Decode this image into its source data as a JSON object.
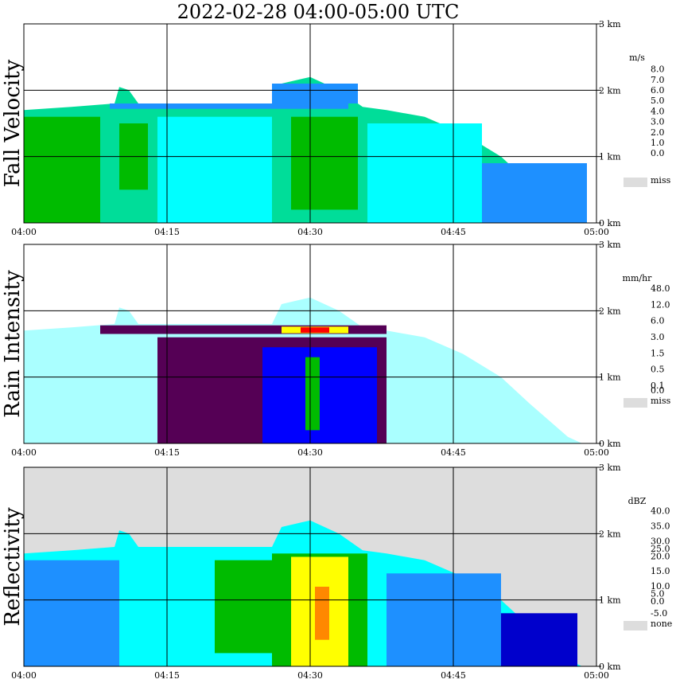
{
  "title": "2022-02-28   04:00-05:00 UTC",
  "colors": {
    "miss": "#dddddd",
    "grid": "#000000"
  },
  "panels": [
    {
      "key": "fall-velocity",
      "ylabel": "Fall Velocity",
      "unit": "m/s",
      "background": "#ffffff",
      "legend": [
        {
          "label": "8.0",
          "color": "#ff00ff"
        },
        {
          "label": "7.0",
          "color": "#ff0000"
        },
        {
          "label": "6.0",
          "color": "#ff8800"
        },
        {
          "label": "5.0",
          "color": "#ffdd00"
        },
        {
          "label": "4.0",
          "color": "#99ee00"
        },
        {
          "label": "3.0",
          "color": "#00bb00"
        },
        {
          "label": "2.0",
          "color": "#00dd99"
        },
        {
          "label": "1.0",
          "color": "#00ffff"
        },
        {
          "label": "0.0",
          "color": "#1e90ff"
        },
        {
          "label": "",
          "color": "#0000ff"
        }
      ],
      "miss_label": "miss"
    },
    {
      "key": "rain-intensity",
      "ylabel": "Rain Intensity",
      "unit": "mm/hr",
      "background": "#ffffff",
      "legend": [
        {
          "label": "48.0",
          "color": "#000000"
        },
        {
          "label": "",
          "color": "#550055"
        },
        {
          "label": "12.0",
          "color": "#aa00aa"
        },
        {
          "label": "",
          "color": "#ff00aa"
        },
        {
          "label": "6.0",
          "color": "#ff0000"
        },
        {
          "label": "",
          "color": "#ff8800"
        },
        {
          "label": "3.0",
          "color": "#ffff00"
        },
        {
          "label": "",
          "color": "#88ff33"
        },
        {
          "label": "1.5",
          "color": "#00bb00"
        },
        {
          "label": "",
          "color": "#1e90ff"
        },
        {
          "label": "0.5",
          "color": "#0000ff"
        },
        {
          "label": "",
          "color": "#00ffff"
        },
        {
          "label": "0.1",
          "color": "#aaffff"
        }
      ],
      "zero_label": "0.0",
      "miss_label": "miss"
    },
    {
      "key": "reflectivity",
      "ylabel": "Reflectivity",
      "unit": "dBZ",
      "background": "#dddddd",
      "legend": [
        {
          "label": "40.0",
          "color": "#cc66cc"
        },
        {
          "label": "",
          "color": "#aa00aa"
        },
        {
          "label": "35.0",
          "color": "#cc00cc"
        },
        {
          "label": "",
          "color": "#ff0066"
        },
        {
          "label": "30.0",
          "color": "#ff0000"
        },
        {
          "label": "25.0",
          "color": "#ff8800"
        },
        {
          "label": "20.0",
          "color": "#ffff00"
        },
        {
          "label": "",
          "color": "#88ff00"
        },
        {
          "label": "15.0",
          "color": "#00bb00"
        },
        {
          "label": "",
          "color": "#00ffcc"
        },
        {
          "label": "10.0",
          "color": "#00ffff"
        },
        {
          "label": "5.0",
          "color": "#1e90ff"
        },
        {
          "label": "0.0",
          "color": "#0000cc"
        },
        {
          "label": "",
          "color": "#000088"
        }
      ],
      "zero_label": "-5.0",
      "miss_label": "none"
    }
  ],
  "chart_data": {
    "type": "heatmap",
    "title": "2022-02-28   04:00-05:00 UTC",
    "x_ticks": [
      "04:00",
      "04:15",
      "04:30",
      "04:45",
      "05:00"
    ],
    "x_tick_minutes": [
      0,
      15,
      30,
      45,
      60
    ],
    "y_ticks": [
      "0 km",
      "1 km",
      "2 km",
      "3 km"
    ],
    "y_tick_km": [
      0,
      1,
      2,
      3
    ],
    "ylim_km": [
      0,
      3.0
    ],
    "xlim_minutes": [
      0,
      60
    ],
    "grid": true,
    "echo_top_km": [
      {
        "t": 0,
        "h": 1.7
      },
      {
        "t": 5,
        "h": 1.75
      },
      {
        "t": 9.5,
        "h": 1.8
      },
      {
        "t": 10,
        "h": 2.05
      },
      {
        "t": 11,
        "h": 2.0
      },
      {
        "t": 12,
        "h": 1.8
      },
      {
        "t": 26,
        "h": 1.8
      },
      {
        "t": 27,
        "h": 2.1
      },
      {
        "t": 30,
        "h": 2.2
      },
      {
        "t": 33,
        "h": 2.0
      },
      {
        "t": 35.5,
        "h": 1.75
      },
      {
        "t": 38,
        "h": 1.7
      },
      {
        "t": 42,
        "h": 1.6
      },
      {
        "t": 46,
        "h": 1.35
      },
      {
        "t": 50,
        "h": 1.0
      },
      {
        "t": 53,
        "h": 0.6
      },
      {
        "t": 57,
        "h": 0.1
      },
      {
        "t": 58.5,
        "h": 0.0
      }
    ],
    "bright_band_km": 1.7,
    "regions": [
      {
        "panel": "fall-velocity",
        "base": "2.0",
        "patches": [
          {
            "t0": 0,
            "t1": 8,
            "h0": 0.0,
            "h1": 1.6,
            "value": "3.0"
          },
          {
            "t0": 10,
            "t1": 13,
            "h0": 0.5,
            "h1": 1.5,
            "value": "3.0"
          },
          {
            "t0": 28,
            "t1": 35,
            "h0": 0.2,
            "h1": 1.6,
            "value": "3.0"
          },
          {
            "t0": 14,
            "t1": 26,
            "h0": 0.0,
            "h1": 1.6,
            "value": "1.0"
          },
          {
            "t0": 36,
            "t1": 48,
            "h0": 0.0,
            "h1": 1.5,
            "value": "1.0"
          },
          {
            "t0": 9,
            "t1": 34,
            "h0": 1.72,
            "h1": 1.8,
            "value": "0.0"
          },
          {
            "t0": 26,
            "t1": 35,
            "h0": 1.8,
            "h1": 2.1,
            "value": "0.0"
          },
          {
            "t0": 48,
            "t1": 59,
            "h0": 0.0,
            "h1": 0.9,
            "value": "0.0"
          }
        ]
      },
      {
        "panel": "rain-intensity",
        "base": "0.1",
        "patches": [
          {
            "t0": 14,
            "t1": 38,
            "h0": 0.0,
            "h1": 1.6,
            "value": ""
          },
          {
            "t0": 25,
            "t1": 37,
            "h0": 0.0,
            "h1": 1.45,
            "value": "0.5"
          },
          {
            "t0": 29.5,
            "t1": 31,
            "h0": 0.2,
            "h1": 1.3,
            "value": "1.5"
          },
          {
            "t0": 8,
            "t1": 38,
            "h0": 1.65,
            "h1": 1.78,
            "value": ""
          },
          {
            "t0": 27,
            "t1": 34,
            "h0": 1.66,
            "h1": 1.76,
            "value": "3.0"
          },
          {
            "t0": 29,
            "t1": 32,
            "h0": 1.67,
            "h1": 1.75,
            "value": "6.0"
          }
        ]
      },
      {
        "panel": "reflectivity",
        "base": "10.0",
        "patches": [
          {
            "t0": 0,
            "t1": 10,
            "h0": 0.0,
            "h1": 1.6,
            "value": "5.0"
          },
          {
            "t0": 20,
            "t1": 27,
            "h0": 0.2,
            "h1": 1.6,
            "value": "15.0"
          },
          {
            "t0": 26,
            "t1": 36,
            "h0": 0.0,
            "h1": 1.7,
            "value": "15.0"
          },
          {
            "t0": 28,
            "t1": 34,
            "h0": 0.0,
            "h1": 1.65,
            "value": "20.0"
          },
          {
            "t0": 30.5,
            "t1": 32,
            "h0": 0.4,
            "h1": 1.2,
            "value": "25.0"
          },
          {
            "t0": 38,
            "t1": 50,
            "h0": 0.0,
            "h1": 1.4,
            "value": "5.0"
          },
          {
            "t0": 50,
            "t1": 58,
            "h0": 0.0,
            "h1": 0.8,
            "value": "0.0"
          }
        ]
      }
    ]
  }
}
